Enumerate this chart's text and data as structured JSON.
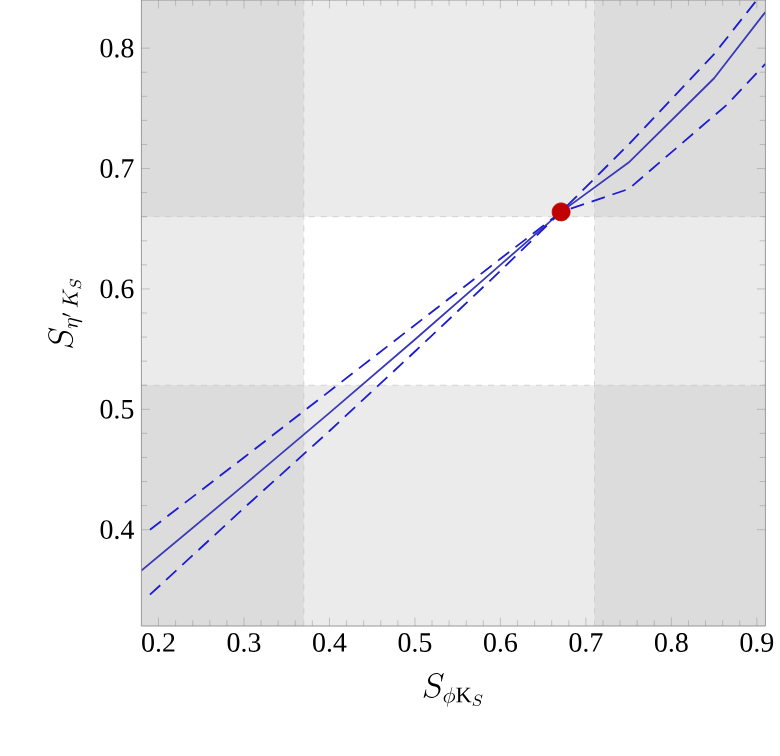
{
  "chart_data": {
    "type": "line",
    "xlabel": "S_{\\phi \\mathrm{K}_S}",
    "ylabel": "S_{\\eta' \\, K_S}",
    "xlim": [
      0.18,
      0.91
    ],
    "ylim": [
      0.32,
      0.84
    ],
    "xticks": [
      0.2,
      0.3,
      0.4,
      0.5,
      0.6,
      0.7,
      0.8,
      0.9
    ],
    "yticks": [
      0.4,
      0.5,
      0.6,
      0.7,
      0.8
    ],
    "bands": [
      {
        "axis": "x",
        "from": 0.18,
        "to": 0.37,
        "color": "#ebebeb"
      },
      {
        "axis": "x",
        "from": 0.71,
        "to": 0.91,
        "color": "#ebebeb"
      },
      {
        "axis": "y",
        "from": 0.32,
        "to": 0.52,
        "color": "#ebebeb"
      },
      {
        "axis": "y",
        "from": 0.66,
        "to": 0.84,
        "color": "#ebebeb"
      }
    ],
    "series": [
      {
        "color": "#3a3ab8",
        "line_style": "solid",
        "marker": "none",
        "x": [
          0.18,
          0.3,
          0.4,
          0.5,
          0.6,
          0.671,
          0.75,
          0.85,
          0.91
        ],
        "values": [
          0.366,
          0.437,
          0.497,
          0.558,
          0.62,
          0.664,
          0.705,
          0.775,
          0.83
        ]
      },
      {
        "color": "#1c1cd0",
        "line_style": "dashed",
        "marker": "none",
        "x": [
          0.19,
          0.3,
          0.4,
          0.5,
          0.6,
          0.671,
          0.75,
          0.85,
          0.9
        ],
        "values": [
          0.4,
          0.46,
          0.515,
          0.57,
          0.625,
          0.664,
          0.72,
          0.795,
          0.84
        ]
      },
      {
        "color": "#1c1cd0",
        "line_style": "dashed",
        "marker": "none",
        "x": [
          0.19,
          0.3,
          0.4,
          0.5,
          0.6,
          0.671,
          0.75,
          0.865,
          0.91
        ],
        "values": [
          0.346,
          0.418,
          0.482,
          0.548,
          0.615,
          0.664,
          0.683,
          0.753,
          0.787
        ]
      },
      {
        "type": "scatter",
        "color": "#c00000",
        "marker": "circle",
        "x": [
          0.671
        ],
        "values": [
          0.664
        ]
      }
    ]
  }
}
